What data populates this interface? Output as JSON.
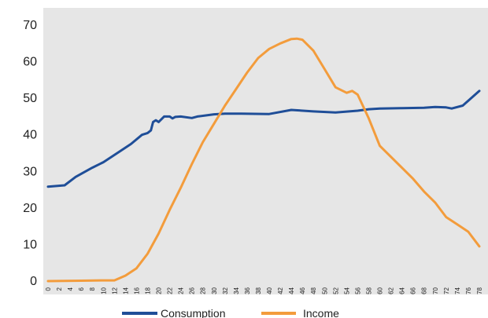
{
  "chart_data": {
    "type": "line",
    "x": [
      0,
      2,
      4,
      6,
      8,
      10,
      12,
      14,
      16,
      18,
      20,
      22,
      24,
      26,
      28,
      30,
      32,
      34,
      36,
      38,
      40,
      42,
      44,
      46,
      48,
      50,
      52,
      54,
      56,
      58,
      60,
      62,
      64,
      66,
      68,
      70,
      72,
      74,
      76,
      78
    ],
    "x_ticks": [
      "0",
      "2",
      "4",
      "6",
      "8",
      "10",
      "12",
      "14",
      "16",
      "18",
      "20",
      "22",
      "24",
      "26",
      "28",
      "30",
      "32",
      "34",
      "36",
      "38",
      "40",
      "42",
      "44",
      "46",
      "48",
      "50",
      "52",
      "54",
      "56",
      "58",
      "60",
      "62",
      "64",
      "66",
      "68",
      "70",
      "72",
      "74",
      "76",
      "78"
    ],
    "y_ticks": [
      "0",
      "10",
      "20",
      "30",
      "40",
      "50",
      "60",
      "70"
    ],
    "ylim": [
      0,
      70
    ],
    "xlim": [
      0,
      78
    ],
    "grid": false,
    "legend_position": "bottom",
    "plot_background": "#e6e6e6",
    "series": [
      {
        "name": "Consumption",
        "color": "#1f4e98",
        "points": [
          [
            0,
            25.8
          ],
          [
            3,
            26.2
          ],
          [
            5,
            28.5
          ],
          [
            8,
            31
          ],
          [
            10,
            32.5
          ],
          [
            13,
            35.5
          ],
          [
            15,
            37.5
          ],
          [
            17,
            40
          ],
          [
            18,
            40.5
          ],
          [
            18.6,
            41.2
          ],
          [
            19,
            43.5
          ],
          [
            19.5,
            44
          ],
          [
            20,
            43.5
          ],
          [
            21,
            45
          ],
          [
            22,
            45
          ],
          [
            22.5,
            44.5
          ],
          [
            23,
            44.9
          ],
          [
            24,
            45
          ],
          [
            26,
            44.6
          ],
          [
            27,
            45
          ],
          [
            30,
            45.6
          ],
          [
            32,
            45.8
          ],
          [
            35,
            45.8
          ],
          [
            40,
            45.7
          ],
          [
            44,
            46.8
          ],
          [
            48,
            46.4
          ],
          [
            52,
            46.1
          ],
          [
            56,
            46.6
          ],
          [
            58,
            47
          ],
          [
            60,
            47.2
          ],
          [
            64,
            47.3
          ],
          [
            68,
            47.4
          ],
          [
            70,
            47.6
          ],
          [
            72,
            47.5
          ],
          [
            73,
            47.2
          ],
          [
            75,
            48
          ],
          [
            78,
            52
          ]
        ]
      },
      {
        "name": "Income",
        "color": "#f39c3c",
        "points": [
          [
            0,
            0
          ],
          [
            6,
            0.1
          ],
          [
            10,
            0.2
          ],
          [
            12,
            0.2
          ],
          [
            14,
            1.5
          ],
          [
            16,
            3.5
          ],
          [
            18,
            7.5
          ],
          [
            20,
            13
          ],
          [
            22,
            19.5
          ],
          [
            24,
            25.5
          ],
          [
            26,
            32
          ],
          [
            28,
            38
          ],
          [
            30,
            43
          ],
          [
            32,
            48
          ],
          [
            34,
            52.5
          ],
          [
            36,
            57
          ],
          [
            38,
            61
          ],
          [
            40,
            63.5
          ],
          [
            42,
            65
          ],
          [
            44,
            66.2
          ],
          [
            45,
            66.3
          ],
          [
            46,
            66
          ],
          [
            48,
            63
          ],
          [
            50,
            58
          ],
          [
            52,
            53
          ],
          [
            54,
            51.5
          ],
          [
            55,
            52
          ],
          [
            56,
            51
          ],
          [
            58,
            44.5
          ],
          [
            60,
            37
          ],
          [
            62,
            34
          ],
          [
            64,
            31
          ],
          [
            66,
            28
          ],
          [
            68,
            24.5
          ],
          [
            70,
            21.5
          ],
          [
            72,
            17.5
          ],
          [
            74,
            15.5
          ],
          [
            76,
            13.5
          ],
          [
            78,
            9.5
          ]
        ]
      }
    ]
  }
}
